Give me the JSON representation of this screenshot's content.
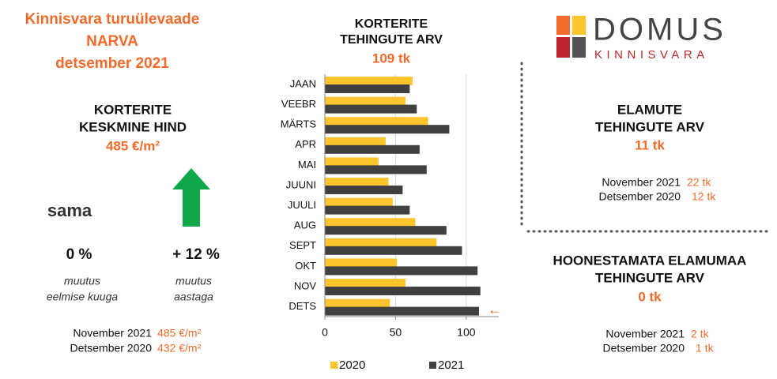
{
  "header": {
    "title": [
      "Kinnisvara turuülevaade",
      "NARVA",
      "detsember 2021"
    ]
  },
  "logo": {
    "name": "DOMUS",
    "sub": "KINNISVARA"
  },
  "price": {
    "title": [
      "KORTERITE",
      "KESKMINE HIND"
    ],
    "value": "485 €/m²",
    "status": "sama",
    "monthly_change": "0 %",
    "monthly_caption": [
      "muutus",
      "eelmise kuuga"
    ],
    "yearly_change": "+ 12 %",
    "yearly_caption": [
      "muutus",
      "aastaga"
    ],
    "compare": [
      {
        "label": "November  2021",
        "value": "485 €/m²"
      },
      {
        "label": "Detsember 2020",
        "value": "432 €/m²"
      }
    ]
  },
  "houses": {
    "title": [
      "ELAMUTE",
      "TEHINGUTE ARV"
    ],
    "value": "11 tk",
    "compare": [
      {
        "label": "November  2021",
        "value": "22 tk"
      },
      {
        "label": "Detsember 2020",
        "value": "12 tk"
      }
    ]
  },
  "land": {
    "title": [
      "HOONESTAMATA ELAMUMAA",
      "TEHINGUTE ARV"
    ],
    "value": "0 tk",
    "compare": [
      {
        "label": "November  2021",
        "value": "2 tk"
      },
      {
        "label": "Detsember 2020",
        "value": "1 tk"
      }
    ]
  },
  "chart_data": {
    "type": "bar",
    "orientation": "horizontal",
    "title": [
      "KORTERITE",
      "TEHINGUTE ARV"
    ],
    "subtitle": "109 tk",
    "annotation": "←",
    "categories": [
      "JAAN",
      "VEEBR",
      "MÄRTS",
      "APR",
      "MAI",
      "JUUNI",
      "JUULI",
      "AUG",
      "SEPT",
      "OKT",
      "NOV",
      "DETS"
    ],
    "series": [
      {
        "name": "2020",
        "color": "#fdc52d",
        "values": [
          62,
          57,
          73,
          43,
          38,
          45,
          48,
          64,
          79,
          51,
          57,
          46
        ]
      },
      {
        "name": "2021",
        "color": "#404040",
        "values": [
          60,
          65,
          88,
          67,
          72,
          55,
          60,
          86,
          97,
          108,
          110,
          109
        ]
      }
    ],
    "xlim": [
      0,
      123
    ],
    "xticks": [
      0,
      50,
      100
    ],
    "grid": true
  }
}
